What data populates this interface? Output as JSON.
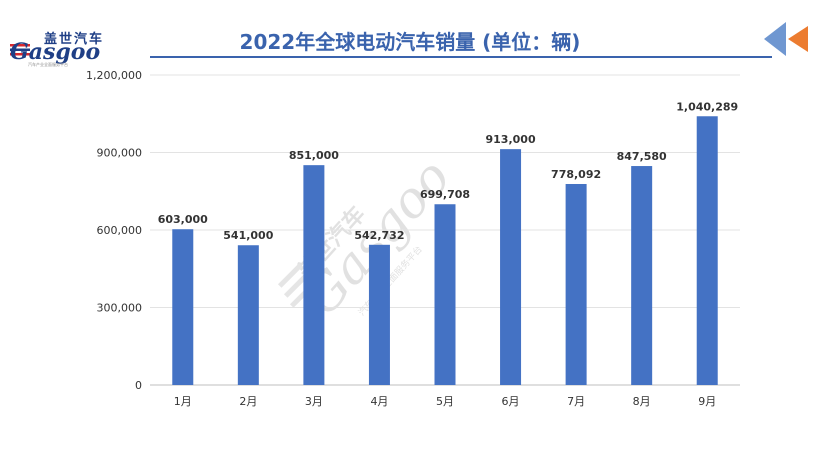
{
  "logo": {
    "cn": "盖世汽车",
    "en": "Gasgoo",
    "sub": "汽车产业全面服务平台"
  },
  "header": {
    "title": "2022年全球电动汽车销量 (单位：辆)"
  },
  "watermark": {
    "cn": "盖世汽车",
    "en": "Gasgoo",
    "sub": "汽车产业全面服务平台"
  },
  "colors": {
    "bar": "#4472c4",
    "title": "#3a63ad",
    "arrow_blue": "#6f97d1",
    "arrow_orange": "#ec7c30"
  },
  "chart_data": {
    "type": "bar",
    "title": "2022年全球电动汽车销量 (单位：辆)",
    "categories": [
      "1月",
      "2月",
      "3月",
      "4月",
      "5月",
      "6月",
      "7月",
      "8月",
      "9月"
    ],
    "values": [
      603000,
      541000,
      851000,
      542732,
      699708,
      913000,
      778092,
      847580,
      1040289
    ],
    "value_labels": [
      "603,000",
      "541,000",
      "851,000",
      "542,732",
      "699,708",
      "913,000",
      "778,092",
      "847,580",
      "1,040,289"
    ],
    "yticks": [
      0,
      300000,
      600000,
      900000,
      1200000
    ],
    "ytick_labels": [
      "0",
      "300,000",
      "600,000",
      "900,000",
      "1,200,000"
    ],
    "ylim": [
      0,
      1200000
    ],
    "grid": true,
    "legend": "none"
  }
}
